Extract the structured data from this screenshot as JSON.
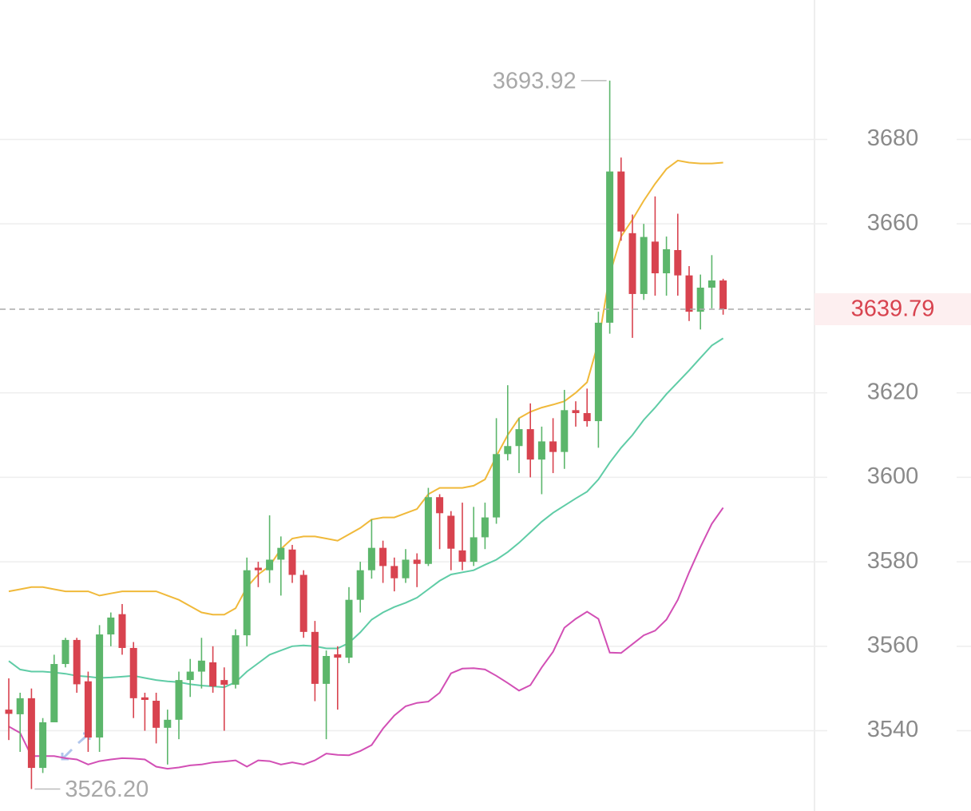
{
  "chart_data": {
    "type": "candlestick",
    "categories": [
      null,
      null,
      null,
      null,
      null,
      null,
      null,
      null,
      null,
      null,
      null,
      null,
      null,
      null,
      null,
      null,
      null,
      null,
      null,
      null,
      null,
      null,
      null,
      null,
      null,
      null,
      null,
      null,
      null,
      null,
      null,
      null,
      null,
      null,
      null,
      null,
      null,
      null,
      null,
      null,
      null,
      null,
      null,
      null,
      null,
      null,
      null,
      null,
      null,
      null,
      null,
      null,
      null,
      null,
      null,
      null,
      null,
      null,
      null,
      null,
      null,
      null,
      null,
      null
    ],
    "open": [
      3545,
      3543.9,
      3547.7,
      3531.2,
      3542,
      3555.8,
      3561.5,
      3551.7,
      3538.4,
      3562.8,
      3567.6,
      3559.6,
      3547.9,
      3547.1,
      3540.7,
      3542.6,
      3552,
      3554,
      3556.2,
      3552,
      3550.9,
      3562.6,
      3578.6,
      3578,
      3580.5,
      3582.9,
      3576.9,
      3563.4,
      3551.1,
      3558.1,
      3557.3,
      3571,
      3578,
      3583.3,
      3579,
      3576.1,
      3580.5,
      3579.5,
      3595.3,
      3590.9,
      3582.7,
      3580,
      3585.8,
      3590.5,
      3605.5,
      3607.4,
      3611.4,
      3604.2,
      3608.5,
      3606,
      3615.9,
      3615.2,
      3613.3,
      3636.6,
      3672.4,
      3657.8,
      3643.4,
      3655.8,
      3648.3,
      3653.8,
      3647.8,
      3639.2,
      3644.9,
      3646.6
    ],
    "high": [
      3552.4,
      3549,
      3550,
      3543,
      3558,
      3562,
      3562,
      3554,
      3565,
      3568,
      3570,
      3561,
      3549,
      3549,
      3545,
      3554,
      3557,
      3562,
      3560,
      3555,
      3564,
      3581,
      3580,
      3591,
      3586,
      3584,
      3578,
      3566,
      3559,
      3560,
      3574,
      3580,
      3590,
      3585,
      3581,
      3583,
      3582,
      3597.5,
      3596,
      3592,
      3594,
      3593,
      3594,
      3614,
      3621.8,
      3614,
      3617.5,
      3612,
      3614,
      3620.7,
      3618,
      3621,
      3639.2,
      3693.92,
      3675.7,
      3662.2,
      3660,
      3666.5,
      3657,
      3662.4,
      3650,
      3648,
      3652.6,
      3647
    ],
    "low": [
      3537.8,
      3535,
      3526.2,
      3530,
      3542,
      3555,
      3549,
      3535,
      3535,
      3560,
      3558,
      3543,
      3540,
      3537,
      3532,
      3538,
      3548,
      3550,
      3549,
      3540,
      3550,
      3560,
      3574,
      3575,
      3572,
      3575,
      3562,
      3547,
      3538,
      3545,
      3556,
      3568,
      3576,
      3575,
      3573,
      3575,
      3574,
      3579,
      3583,
      3578,
      3578,
      3579,
      3583,
      3589,
      3604,
      3601,
      3600,
      3596,
      3601,
      3602,
      3612,
      3612,
      3607,
      3634,
      3656,
      3633,
      3642,
      3643,
      3643,
      3643,
      3637,
      3635,
      3640,
      3638.5
    ],
    "close": [
      3544,
      3547.7,
      3531.2,
      3542,
      3555.8,
      3561.5,
      3551,
      3538.4,
      3562.8,
      3566.8,
      3559.6,
      3547.7,
      3547.3,
      3540.7,
      3542.6,
      3552,
      3554,
      3556.6,
      3550.5,
      3550.9,
      3562.6,
      3578,
      3578,
      3580.5,
      3583.3,
      3576.9,
      3563.4,
      3551.1,
      3557.7,
      3557.3,
      3571,
      3578,
      3583.3,
      3579,
      3576.1,
      3580.5,
      3579.5,
      3595.3,
      3591.5,
      3583.1,
      3580,
      3585.8,
      3590.5,
      3605.5,
      3607.4,
      3611.4,
      3604.2,
      3608.5,
      3606,
      3615.9,
      3615.2,
      3613.3,
      3636.6,
      3672.4,
      3658.2,
      3643.4,
      3656.9,
      3648.3,
      3654,
      3647.8,
      3639.2,
      3644.9,
      3646.6,
      3639.79
    ],
    "up_color": "#5cb66b",
    "down_color": "#d8434f",
    "series": [
      {
        "color": "#f0b93a",
        "values": [
          3573,
          3573.5,
          3574,
          3574,
          3573.5,
          3573,
          3573,
          3573,
          3572,
          3572.5,
          3573,
          3573,
          3573,
          3573,
          3572,
          3571,
          3569.5,
          3568,
          3567.5,
          3567.5,
          3569,
          3574,
          3577,
          3579,
          3583,
          3585.5,
          3586,
          3586,
          3585.5,
          3585,
          3586.5,
          3588,
          3590,
          3590.5,
          3590.5,
          3591.5,
          3592.5,
          3596,
          3597.5,
          3597.5,
          3597.5,
          3598,
          3599.5,
          3605,
          3610,
          3614,
          3615.5,
          3616.5,
          3617.2,
          3618,
          3620,
          3622.5,
          3632,
          3648,
          3657,
          3661,
          3665.5,
          3669.5,
          3673,
          3675,
          3674.5,
          3674.3,
          3674.3,
          3674.5
        ]
      },
      {
        "color": "#5fcca6",
        "values": [
          3556.5,
          3554.5,
          3554,
          3554,
          3553.8,
          3553.5,
          3553,
          3552.8,
          3552.5,
          3552.6,
          3552.8,
          3553,
          3552.5,
          3552,
          3551.7,
          3551.5,
          3551,
          3550.7,
          3550.5,
          3550.3,
          3551.5,
          3554,
          3556,
          3558,
          3559,
          3560,
          3560.2,
          3560,
          3559.5,
          3559.5,
          3560.8,
          3563.3,
          3566.3,
          3568,
          3569.3,
          3570.3,
          3571.5,
          3573.5,
          3575.5,
          3577,
          3577.5,
          3578,
          3579.3,
          3580.5,
          3582.3,
          3584.5,
          3587,
          3589.5,
          3591.6,
          3593.3,
          3595,
          3596.6,
          3599.5,
          3603.5,
          3607,
          3610,
          3613.6,
          3616.5,
          3619.7,
          3622.5,
          3625.3,
          3628.3,
          3631.2,
          3632.9
        ]
      },
      {
        "color": "#d24fb5",
        "values": [
          3541,
          3539.5,
          3534,
          3534,
          3534,
          3533.5,
          3533.2,
          3532,
          3532.8,
          3533.2,
          3533.5,
          3533.4,
          3533.2,
          3531.5,
          3531,
          3531.3,
          3531.8,
          3532,
          3532.5,
          3532.7,
          3533,
          3531.5,
          3533,
          3532.8,
          3532,
          3532.5,
          3532,
          3533,
          3534.6,
          3534.3,
          3534.2,
          3535.2,
          3536.6,
          3540.5,
          3543.6,
          3545.8,
          3546.6,
          3546.9,
          3549,
          3553.6,
          3554.7,
          3554.8,
          3554.5,
          3553,
          3551.3,
          3549.5,
          3550.8,
          3555,
          3558.7,
          3564.4,
          3566.5,
          3568.2,
          3566.5,
          3558.5,
          3558.4,
          3560.5,
          3562.6,
          3563.7,
          3566.3,
          3571,
          3577.5,
          3583.5,
          3589,
          3592.8
        ]
      }
    ],
    "ylim": [
      3521,
      3713
    ],
    "yticks": [
      3540,
      3560,
      3580,
      3600,
      3620,
      3660,
      3680
    ],
    "grid": true,
    "annotations": [
      {
        "value": 3693.92,
        "label": "3693.92"
      },
      {
        "value": 3526.2,
        "label": "3526.20"
      }
    ],
    "last_price": 3639.79,
    "last_price_color": "#d8434f"
  }
}
